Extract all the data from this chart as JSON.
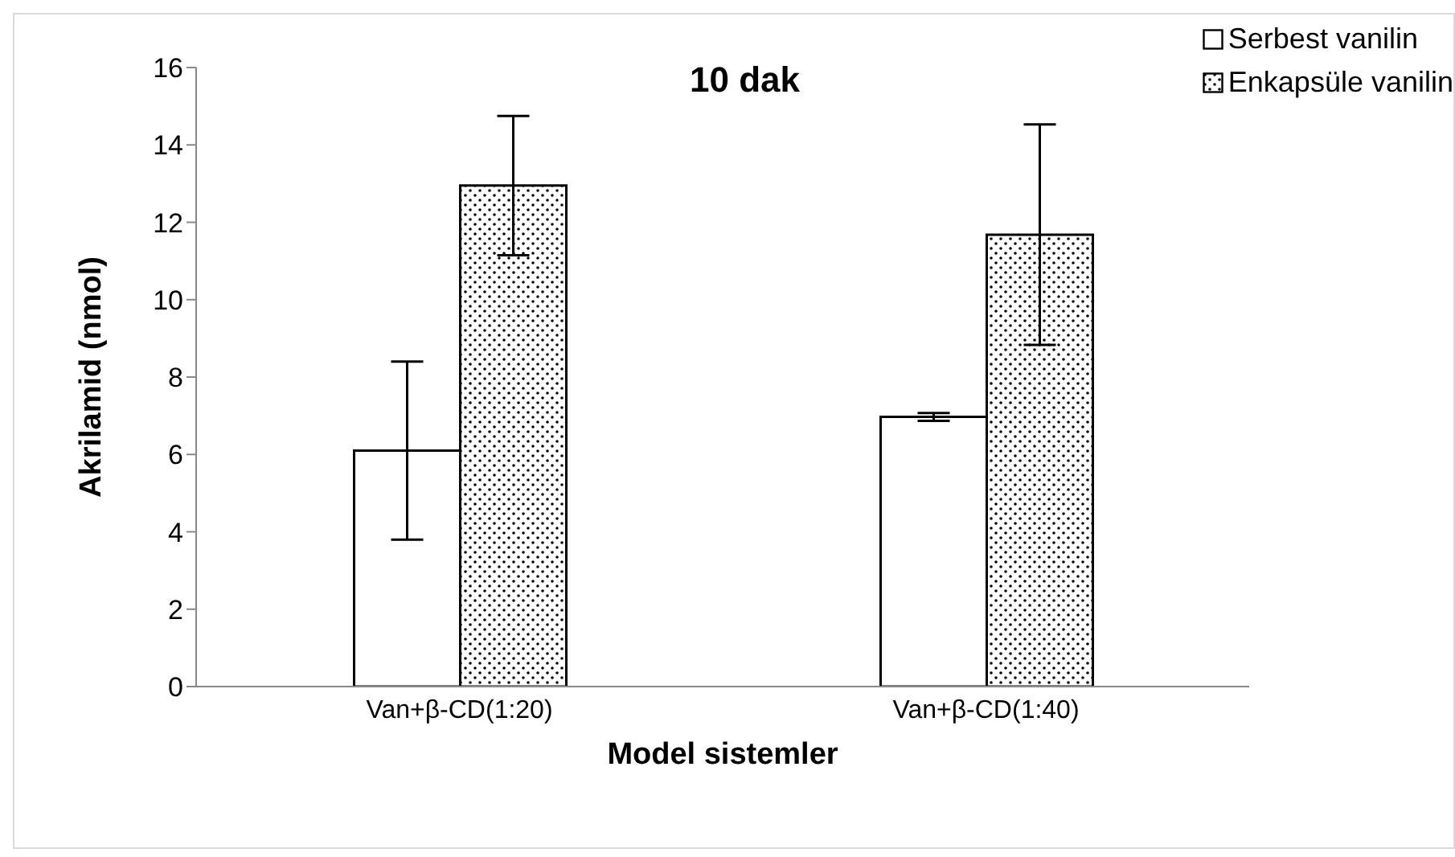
{
  "chart_data": {
    "type": "bar",
    "title": "10 dak",
    "xlabel": "Model sistemler",
    "ylabel": "Akrilamid (nmol)",
    "categories": [
      "Van+β-CD(1:20)",
      "Van+β-CD(1:40)"
    ],
    "series": [
      {
        "name": "Serbest vanilin",
        "color": "#ffffff",
        "values": [
          6.1,
          6.97
        ],
        "errors": [
          2.3,
          0.1
        ]
      },
      {
        "name": "Enkapsüle vanilin",
        "color": "#000000",
        "values": [
          12.95,
          11.68
        ],
        "errors": [
          1.8,
          2.85
        ]
      }
    ],
    "ylim": [
      0,
      16
    ],
    "yticks": [
      0,
      2,
      4,
      6,
      8,
      10,
      12,
      14,
      16
    ],
    "legend": "top right"
  }
}
